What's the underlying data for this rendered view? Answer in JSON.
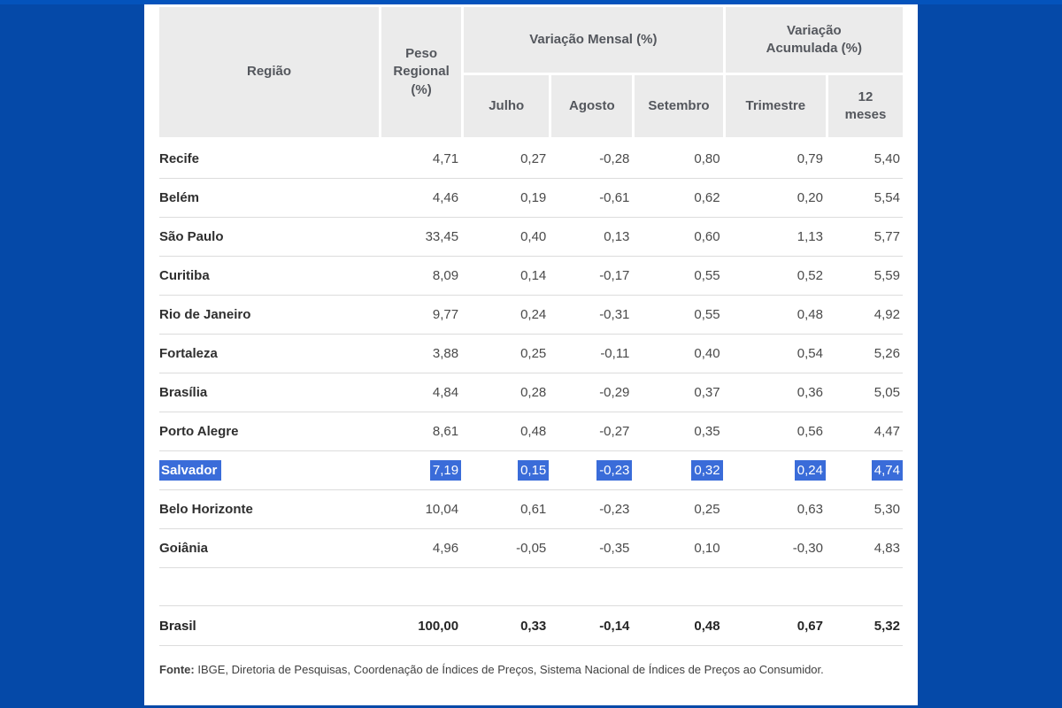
{
  "colors": {
    "page_background": "#0549A8",
    "top_bar": "#0453BC",
    "panel_background": "#FFFFFF",
    "header_cell_background": "#EBEBEB",
    "header_text": "#54575D",
    "row_divider": "#DCDCDC",
    "selection_background": "#3A6CD9",
    "selection_text": "#FFFFFF"
  },
  "table": {
    "header": {
      "region": "Região",
      "weight": "Peso Regional (%)",
      "monthly_group": "Variação Mensal (%)",
      "accumulated_group": "Variação Acumulada (%)",
      "julho": "Julho",
      "agosto": "Agosto",
      "setembro": "Setembro",
      "trimestre": "Trimestre",
      "meses12": "12 meses"
    },
    "rows": [
      {
        "region": "Recife",
        "weight": "4,71",
        "julho": "0,27",
        "agosto": "-0,28",
        "setembro": "0,80",
        "trimestre": "0,79",
        "meses12": "5,40",
        "selected": false
      },
      {
        "region": "Belém",
        "weight": "4,46",
        "julho": "0,19",
        "agosto": "-0,61",
        "setembro": "0,62",
        "trimestre": "0,20",
        "meses12": "5,54",
        "selected": false
      },
      {
        "region": "São Paulo",
        "weight": "33,45",
        "julho": "0,40",
        "agosto": "0,13",
        "setembro": "0,60",
        "trimestre": "1,13",
        "meses12": "5,77",
        "selected": false
      },
      {
        "region": "Curitiba",
        "weight": "8,09",
        "julho": "0,14",
        "agosto": "-0,17",
        "setembro": "0,55",
        "trimestre": "0,52",
        "meses12": "5,59",
        "selected": false
      },
      {
        "region": "Rio de Janeiro",
        "weight": "9,77",
        "julho": "0,24",
        "agosto": "-0,31",
        "setembro": "0,55",
        "trimestre": "0,48",
        "meses12": "4,92",
        "selected": false
      },
      {
        "region": "Fortaleza",
        "weight": "3,88",
        "julho": "0,25",
        "agosto": "-0,11",
        "setembro": "0,40",
        "trimestre": "0,54",
        "meses12": "5,26",
        "selected": false
      },
      {
        "region": "Brasília",
        "weight": "4,84",
        "julho": "0,28",
        "agosto": "-0,29",
        "setembro": "0,37",
        "trimestre": "0,36",
        "meses12": "5,05",
        "selected": false
      },
      {
        "region": "Porto Alegre",
        "weight": "8,61",
        "julho": "0,48",
        "agosto": "-0,27",
        "setembro": "0,35",
        "trimestre": "0,56",
        "meses12": "4,47",
        "selected": false
      },
      {
        "region": "Salvador",
        "weight": "7,19",
        "julho": "0,15",
        "agosto": "-0,23",
        "setembro": "0,32",
        "trimestre": "0,24",
        "meses12": "4,74",
        "selected": true
      },
      {
        "region": "Belo Horizonte",
        "weight": "10,04",
        "julho": "0,61",
        "agosto": "-0,23",
        "setembro": "0,25",
        "trimestre": "0,63",
        "meses12": "5,30",
        "selected": false
      },
      {
        "region": "Goiânia",
        "weight": "4,96",
        "julho": "-0,05",
        "agosto": "-0,35",
        "setembro": "0,10",
        "trimestre": "-0,30",
        "meses12": "4,83",
        "selected": false
      }
    ],
    "total": {
      "region": "Brasil",
      "weight": "100,00",
      "julho": "0,33",
      "agosto": "-0,14",
      "setembro": "0,48",
      "trimestre": "0,67",
      "meses12": "5,32"
    }
  },
  "source": {
    "label": "Fonte:",
    "text": " IBGE, Diretoria de Pesquisas, Coordenação de Índices de Preços, Sistema Nacional de Índices de Preços ao Consumidor."
  },
  "chart_data": {
    "type": "table",
    "columns": [
      "Região",
      "Peso Regional (%)",
      "Variação Mensal (%) — Julho",
      "Variação Mensal (%) — Agosto",
      "Variação Mensal (%) — Setembro",
      "Variação Acumulada (%) — Trimestre",
      "Variação Acumulada (%) — 12 meses"
    ],
    "rows": [
      [
        "Recife",
        4.71,
        0.27,
        -0.28,
        0.8,
        0.79,
        5.4
      ],
      [
        "Belém",
        4.46,
        0.19,
        -0.61,
        0.62,
        0.2,
        5.54
      ],
      [
        "São Paulo",
        33.45,
        0.4,
        0.13,
        0.6,
        1.13,
        5.77
      ],
      [
        "Curitiba",
        8.09,
        0.14,
        -0.17,
        0.55,
        0.52,
        5.59
      ],
      [
        "Rio de Janeiro",
        9.77,
        0.24,
        -0.31,
        0.55,
        0.48,
        4.92
      ],
      [
        "Fortaleza",
        3.88,
        0.25,
        -0.11,
        0.4,
        0.54,
        5.26
      ],
      [
        "Brasília",
        4.84,
        0.28,
        -0.29,
        0.37,
        0.36,
        5.05
      ],
      [
        "Porto Alegre",
        8.61,
        0.48,
        -0.27,
        0.35,
        0.56,
        4.47
      ],
      [
        "Salvador",
        7.19,
        0.15,
        -0.23,
        0.32,
        0.24,
        4.74
      ],
      [
        "Belo Horizonte",
        10.04,
        0.61,
        -0.23,
        0.25,
        0.63,
        5.3
      ],
      [
        "Goiânia",
        4.96,
        -0.05,
        -0.35,
        0.1,
        -0.3,
        4.83
      ],
      [
        "Brasil",
        100.0,
        0.33,
        -0.14,
        0.48,
        0.67,
        5.32
      ]
    ],
    "highlighted_row": "Salvador",
    "source_note": "Fonte: IBGE, Diretoria de Pesquisas, Coordenação de Índices de Preços, Sistema Nacional de Índices de Preços ao Consumidor."
  }
}
